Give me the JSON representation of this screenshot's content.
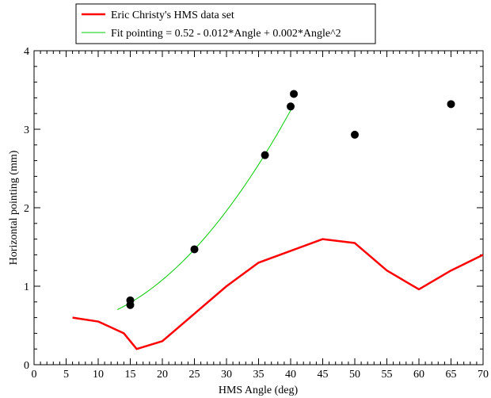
{
  "chart_data": {
    "type": "line",
    "title": "",
    "xlabel": "HMS Angle (deg)",
    "ylabel": "Horizontal pointing (mm)",
    "xlim": [
      0,
      70
    ],
    "ylim": [
      0,
      4
    ],
    "x_ticks": [
      "0",
      "5",
      "10",
      "15",
      "20",
      "25",
      "30",
      "35",
      "40",
      "45",
      "50",
      "55",
      "60",
      "65",
      "70"
    ],
    "y_ticks": [
      "0",
      "1",
      "2",
      "3",
      "4"
    ],
    "grid": false,
    "legend_position": "top-left",
    "series": [
      {
        "name": "Eric Christy's HMS data set",
        "kind": "line",
        "color": "#ff0000",
        "x": [
          6,
          10,
          14,
          16,
          20,
          25,
          30,
          35,
          40,
          45,
          50,
          55,
          60,
          65,
          70
        ],
        "y": [
          0.6,
          0.55,
          0.4,
          0.2,
          0.3,
          0.65,
          1.0,
          1.3,
          1.45,
          1.6,
          1.55,
          1.2,
          0.96,
          1.2,
          1.4
        ]
      },
      {
        "name": "Fit pointing = 0.52 - 0.012*Angle + 0.002*Angle^2",
        "kind": "fit",
        "color": "#00cc00",
        "x_range": [
          13,
          40.5
        ],
        "coefficients": [
          0.52,
          -0.012,
          0.002
        ]
      },
      {
        "name": "",
        "kind": "scatter",
        "color": "#000000",
        "x": [
          15,
          15,
          25,
          36,
          40,
          40.5,
          50,
          65
        ],
        "y": [
          0.82,
          0.76,
          1.47,
          2.67,
          3.29,
          3.45,
          2.93,
          3.32
        ]
      }
    ]
  }
}
